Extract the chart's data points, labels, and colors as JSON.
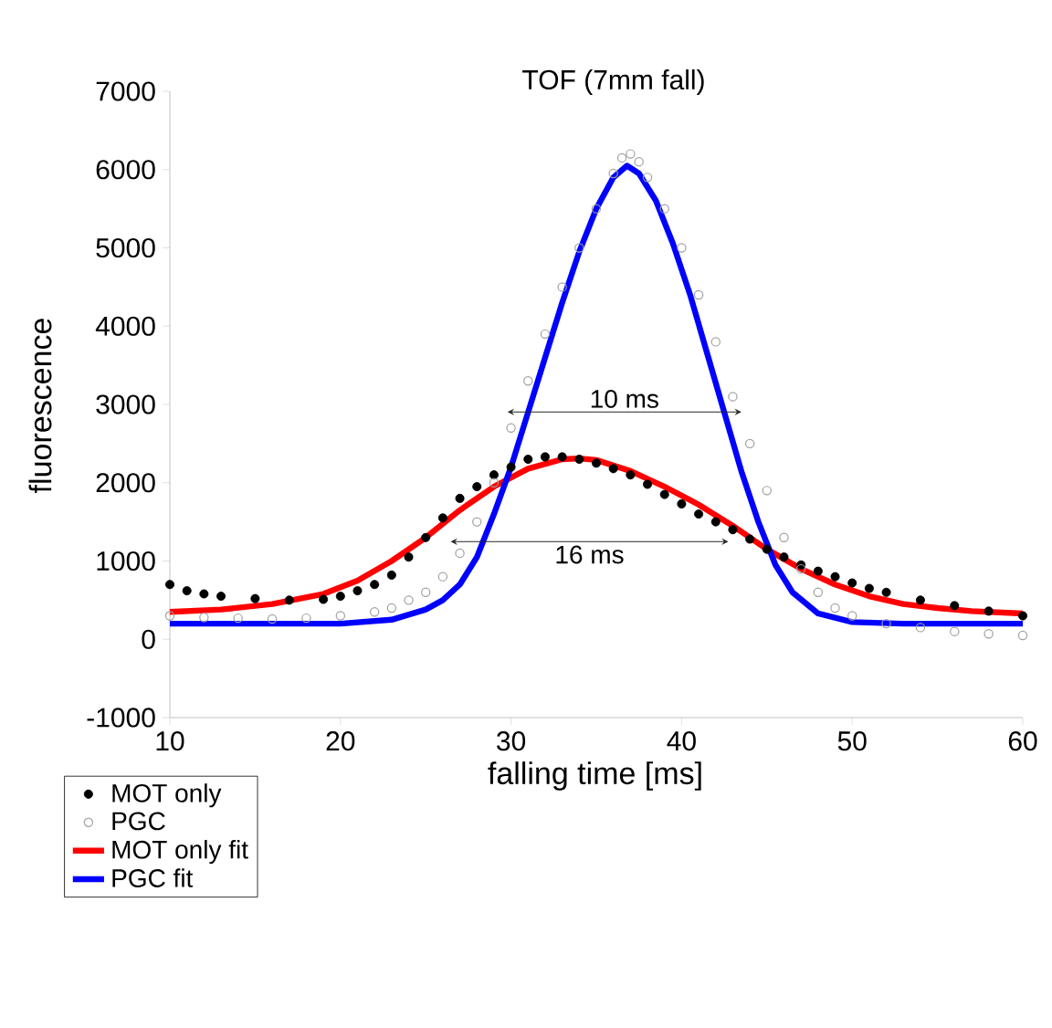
{
  "chart_data": {
    "type": "scatter",
    "title": "TOF (7mm fall)",
    "xlabel": "falling time  [ms]",
    "ylabel": "fluorescence",
    "xlim": [
      10,
      60
    ],
    "ylim": [
      -1000,
      7000
    ],
    "xticks": [
      10,
      20,
      30,
      40,
      50,
      60
    ],
    "yticks": [
      -1000,
      0,
      1000,
      2000,
      3000,
      4000,
      5000,
      6000,
      7000
    ],
    "legend": "bottom left",
    "grid": false,
    "annotations": [
      "10 ms",
      "16 ms"
    ],
    "series": [
      {
        "name": "MOT only",
        "marker": "circle",
        "color": "#000000",
        "x": [
          10,
          11,
          12,
          13,
          15,
          17,
          19,
          20,
          21,
          22,
          23,
          24,
          25,
          26,
          27,
          28,
          29,
          30,
          31,
          32,
          33,
          34,
          35,
          36,
          37,
          38,
          39,
          40,
          41,
          42,
          43,
          44,
          45,
          46,
          47,
          48,
          49,
          50,
          51,
          52,
          54,
          56,
          58,
          60
        ],
        "values": [
          700,
          620,
          580,
          550,
          520,
          500,
          510,
          550,
          620,
          700,
          820,
          1050,
          1300,
          1550,
          1800,
          1950,
          2100,
          2200,
          2300,
          2330,
          2330,
          2300,
          2250,
          2180,
          2100,
          1980,
          1850,
          1730,
          1600,
          1500,
          1400,
          1280,
          1150,
          1050,
          950,
          870,
          800,
          720,
          650,
          600,
          500,
          430,
          360,
          300
        ]
      },
      {
        "name": "PGC",
        "marker": "circle",
        "color": "#a0a0a0",
        "x": [
          10,
          12,
          14,
          16,
          18,
          20,
          22,
          23,
          24,
          25,
          26,
          27,
          28,
          29,
          30,
          31,
          32,
          33,
          34,
          35,
          36,
          36.5,
          37,
          37.5,
          38,
          39,
          40,
          41,
          42,
          43,
          44,
          45,
          46,
          47,
          48,
          49,
          50,
          52,
          54,
          56,
          58,
          60
        ],
        "values": [
          300,
          280,
          270,
          260,
          270,
          300,
          350,
          400,
          500,
          600,
          800,
          1100,
          1500,
          2000,
          2700,
          3300,
          3900,
          4500,
          5000,
          5500,
          5950,
          6150,
          6200,
          6100,
          5900,
          5500,
          5000,
          4400,
          3800,
          3100,
          2500,
          1900,
          1300,
          900,
          600,
          400,
          300,
          200,
          150,
          100,
          70,
          50
        ]
      },
      {
        "name": "MOT only fit",
        "type": "line",
        "line_style": "solid",
        "color": "#ff0000",
        "x": [
          10,
          13,
          16,
          19,
          21,
          23,
          25,
          27,
          29,
          31,
          33,
          34,
          35,
          37,
          39,
          41,
          43,
          45,
          47,
          49,
          51,
          53,
          55,
          57,
          60
        ],
        "values": [
          350,
          380,
          450,
          580,
          750,
          1000,
          1300,
          1650,
          1950,
          2180,
          2300,
          2310,
          2290,
          2150,
          1950,
          1720,
          1450,
          1150,
          900,
          700,
          550,
          450,
          400,
          360,
          330
        ]
      },
      {
        "name": "PGC fit",
        "type": "line",
        "line_style": "solid",
        "color": "#0000ff",
        "x": [
          10,
          15,
          20,
          23,
          25,
          26,
          27,
          28,
          29,
          30,
          31,
          32,
          33,
          34,
          35,
          36,
          36.8,
          37.5,
          38.5,
          39.5,
          40.5,
          41.5,
          42.5,
          43.5,
          44.5,
          45.5,
          46.5,
          48,
          50,
          53,
          60
        ],
        "values": [
          200,
          200,
          200,
          250,
          380,
          500,
          700,
          1050,
          1600,
          2200,
          2900,
          3600,
          4300,
          4950,
          5500,
          5900,
          6050,
          5950,
          5600,
          5050,
          4400,
          3650,
          2900,
          2150,
          1500,
          950,
          600,
          330,
          220,
          200,
          200
        ]
      }
    ]
  }
}
